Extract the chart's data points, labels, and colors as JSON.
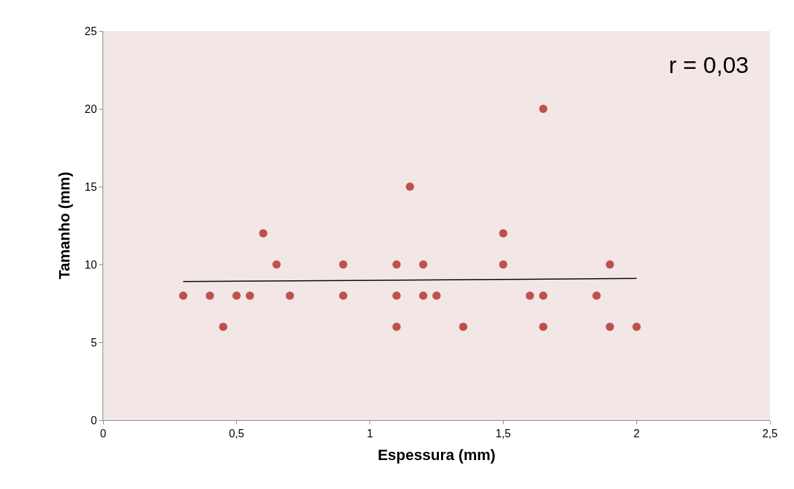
{
  "chart_data": {
    "type": "scatter",
    "xlabel": "Espessura (mm)",
    "ylabel": "Tamanho (mm)",
    "annotations": [
      "r = 0,03"
    ],
    "series": [
      {
        "color": "#c0504d",
        "marker": "circle",
        "x": [
          0.3,
          0.4,
          0.45,
          0.5,
          0.55,
          0.6,
          0.65,
          0.7,
          0.9,
          0.9,
          1.1,
          1.1,
          1.1,
          1.15,
          1.2,
          1.2,
          1.25,
          1.35,
          1.5,
          1.5,
          1.6,
          1.65,
          1.65,
          1.65,
          1.85,
          1.9,
          1.9,
          2.0
        ],
        "values": [
          8,
          8,
          6,
          8,
          8,
          12,
          10,
          8,
          10,
          8,
          10,
          8,
          6,
          15,
          10,
          8,
          8,
          6,
          12,
          10,
          8,
          20,
          8,
          6,
          8,
          10,
          6,
          6
        ]
      },
      {
        "type": "line",
        "color": "#000000",
        "marker": "none",
        "x": [
          0.3,
          2.0
        ],
        "values": [
          8.9,
          9.1
        ]
      }
    ],
    "xlim": [
      0,
      2.5
    ],
    "xticks": [
      0,
      {
        "value": 0.5,
        "label": "0,5"
      },
      1,
      {
        "value": 1.5,
        "label": "1,5"
      },
      2,
      {
        "value": 2.5,
        "label": "2,5"
      }
    ],
    "ylim": [
      0,
      25
    ],
    "yticks": [
      0,
      5,
      10,
      15,
      20,
      25
    ],
    "grid": false,
    "legend": false
  }
}
